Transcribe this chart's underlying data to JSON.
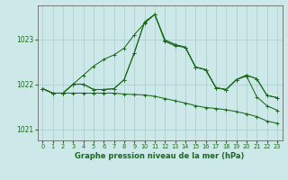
{
  "title": "Graphe pression niveau de la mer (hPa)",
  "bg_color": "#cce8e8",
  "grid_color": "#aacccc",
  "line_color": "#1a6b1a",
  "xlim": [
    -0.5,
    23.5
  ],
  "ylim": [
    1020.75,
    1023.75
  ],
  "yticks": [
    1021,
    1022,
    1023
  ],
  "xticks": [
    0,
    1,
    2,
    3,
    4,
    5,
    6,
    7,
    8,
    9,
    10,
    11,
    12,
    13,
    14,
    15,
    16,
    17,
    18,
    19,
    20,
    21,
    22,
    23
  ],
  "s1": [
    1021.9,
    1021.8,
    1021.8,
    1022.0,
    1022.2,
    1022.4,
    1022.55,
    1022.65,
    1022.8,
    1023.1,
    1023.35,
    1023.55,
    1022.95,
    1022.85,
    1022.82,
    1022.38,
    1022.32,
    1021.92,
    1021.88,
    1022.1,
    1022.2,
    1022.12,
    1021.75,
    1021.7
  ],
  "s2": [
    1021.9,
    1021.8,
    1021.8,
    1021.8,
    1021.8,
    1021.8,
    1021.8,
    1021.8,
    1021.78,
    1021.77,
    1021.76,
    1021.73,
    1021.68,
    1021.63,
    1021.58,
    1021.52,
    1021.48,
    1021.46,
    1021.43,
    1021.39,
    1021.34,
    1021.28,
    1021.18,
    1021.13
  ],
  "s3": [
    1021.9,
    1021.8,
    1021.8,
    1022.0,
    1022.0,
    1021.88,
    1021.88,
    1021.9,
    1022.1,
    1022.7,
    1023.38,
    1023.55,
    1022.98,
    1022.88,
    1022.82,
    1022.38,
    1022.32,
    1021.92,
    1021.88,
    1022.1,
    1022.2,
    1022.12,
    1021.75,
    1021.7
  ],
  "s4": [
    1021.9,
    1021.8,
    1021.8,
    1022.0,
    1022.0,
    1021.88,
    1021.88,
    1021.9,
    1022.1,
    1022.7,
    1023.38,
    1023.55,
    1022.98,
    1022.88,
    1022.82,
    1022.38,
    1022.32,
    1021.92,
    1021.88,
    1022.1,
    1022.18,
    1021.72,
    1021.52,
    1021.42
  ]
}
